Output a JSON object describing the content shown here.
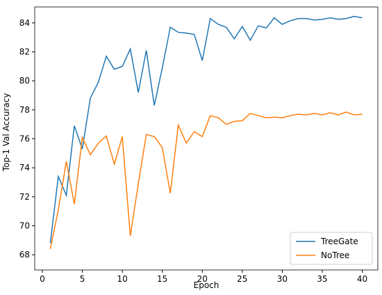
{
  "chart_data": {
    "type": "line",
    "x_label": "Epoch",
    "y_label": "Top-1 Val Accuracy",
    "x": [
      1,
      2,
      3,
      4,
      5,
      6,
      7,
      8,
      9,
      10,
      11,
      12,
      13,
      14,
      15,
      16,
      17,
      18,
      19,
      20,
      21,
      22,
      23,
      24,
      25,
      26,
      27,
      28,
      29,
      30,
      31,
      32,
      33,
      34,
      35,
      36,
      37,
      38,
      39,
      40
    ],
    "series": [
      {
        "name": "TreeGate",
        "color": "#1f77b4",
        "values": [
          68.8,
          73.4,
          72.1,
          76.9,
          75.3,
          78.8,
          79.9,
          81.7,
          80.8,
          81.0,
          82.2,
          79.2,
          82.1,
          78.3,
          80.9,
          83.7,
          83.35,
          83.3,
          83.2,
          81.4,
          84.3,
          83.9,
          83.7,
          82.9,
          83.75,
          82.8,
          83.8,
          83.65,
          84.35,
          83.9,
          84.15,
          84.3,
          84.3,
          84.2,
          84.25,
          84.35,
          84.25,
          84.3,
          84.45,
          84.35
        ]
      },
      {
        "name": "NoTree",
        "color": "#ff7f0e",
        "values": [
          68.4,
          71.1,
          74.45,
          71.5,
          76.1,
          74.9,
          75.7,
          76.2,
          74.25,
          76.15,
          69.3,
          72.9,
          76.3,
          76.15,
          75.4,
          72.25,
          76.95,
          75.7,
          76.5,
          76.15,
          77.6,
          77.45,
          77.0,
          77.2,
          77.25,
          77.75,
          77.6,
          77.45,
          77.5,
          77.45,
          77.6,
          77.7,
          77.65,
          77.75,
          77.65,
          77.8,
          77.65,
          77.85,
          77.65,
          77.7
        ]
      }
    ],
    "xlim": [
      -0.95,
      41.95
    ],
    "ylim": [
      66.95,
      85.1
    ],
    "xticks": [
      0,
      5,
      10,
      15,
      20,
      25,
      30,
      35,
      40
    ],
    "yticks": [
      68,
      70,
      72,
      74,
      76,
      78,
      80,
      82,
      84
    ],
    "legend": "lower right",
    "grid": false
  }
}
